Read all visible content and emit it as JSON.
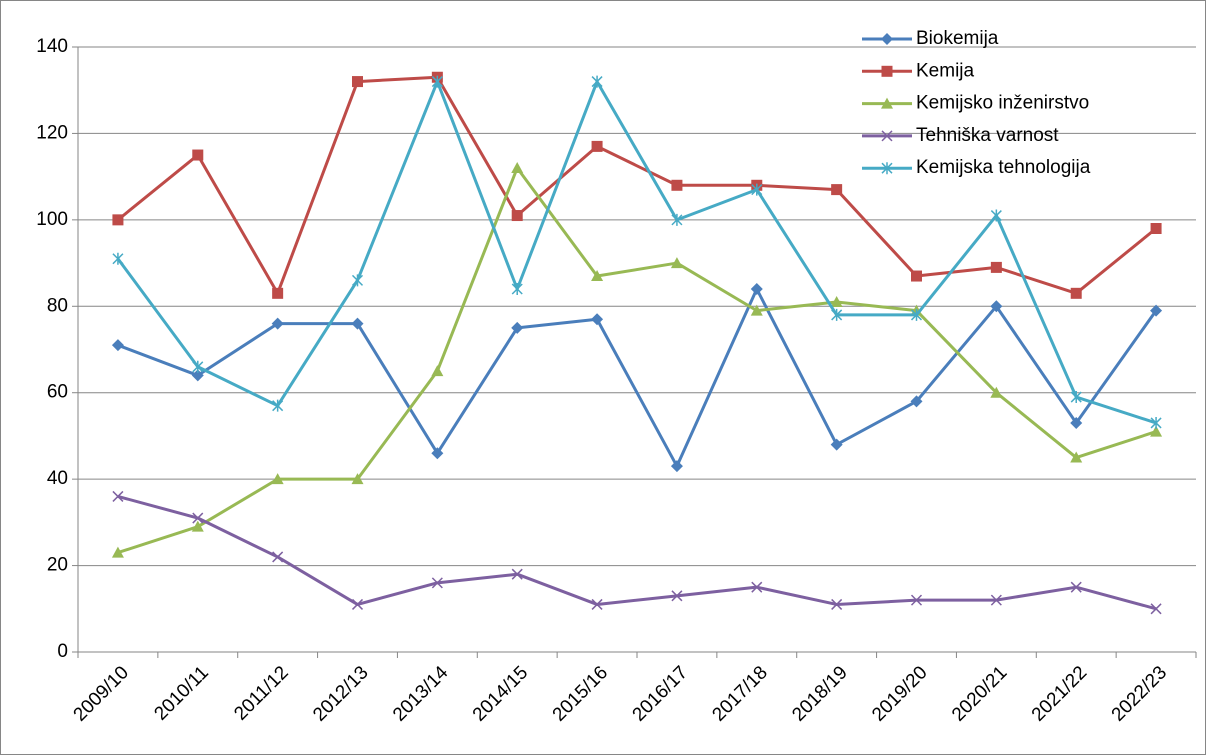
{
  "chart_data": {
    "type": "line",
    "categories": [
      "2009/10",
      "2010/11",
      "2011/12",
      "2012/13",
      "2013/14",
      "2014/15",
      "2015/16",
      "2016/17",
      "2017/18",
      "2018/19",
      "2019/20",
      "2020/21",
      "2021/22",
      "2022/23"
    ],
    "series": [
      {
        "name": "Biokemija",
        "color": "#4a7ebb",
        "marker": "diamond",
        "values": [
          71,
          64,
          76,
          76,
          46,
          75,
          77,
          43,
          84,
          48,
          58,
          80,
          53,
          79
        ]
      },
      {
        "name": "Kemija",
        "color": "#be4b48",
        "marker": "square",
        "values": [
          100,
          115,
          83,
          132,
          133,
          101,
          117,
          108,
          108,
          107,
          87,
          89,
          83,
          98
        ]
      },
      {
        "name": "Kemijsko inženirstvo",
        "color": "#98b954",
        "marker": "triangle",
        "values": [
          23,
          29,
          40,
          40,
          65,
          112,
          87,
          90,
          79,
          81,
          79,
          60,
          45,
          51
        ]
      },
      {
        "name": "Tehniška varnost",
        "color": "#7d60a0",
        "marker": "x",
        "values": [
          36,
          31,
          22,
          11,
          16,
          18,
          11,
          13,
          15,
          11,
          12,
          12,
          15,
          10
        ]
      },
      {
        "name": "Kemijska tehnologija",
        "color": "#46aac5",
        "marker": "star",
        "values": [
          91,
          66,
          57,
          86,
          132,
          84,
          132,
          100,
          107,
          78,
          78,
          101,
          59,
          53
        ]
      }
    ],
    "ylim": [
      0,
      140
    ],
    "yticks": [
      0,
      20,
      40,
      60,
      80,
      100,
      120,
      140
    ],
    "grid": true,
    "legend": "top-right"
  }
}
